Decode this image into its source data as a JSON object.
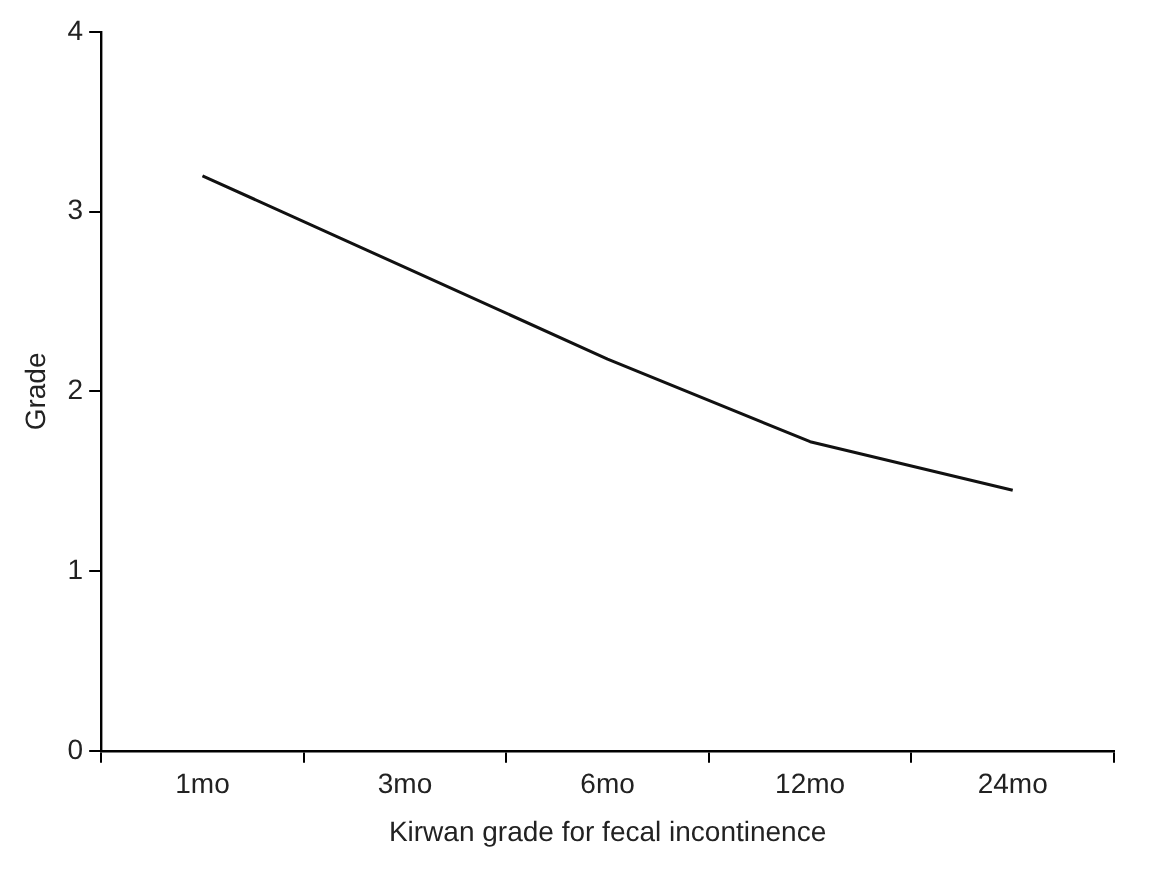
{
  "chart_data": {
    "type": "line",
    "xlabel": "Kirwan grade for fecal incontinence",
    "ylabel": "Grade",
    "categories": [
      "1mo",
      "3mo",
      "6mo",
      "12mo",
      "24mo"
    ],
    "series": [
      {
        "color": "#111111",
        "values": [
          3.2,
          2.69,
          2.18,
          1.72,
          1.45
        ]
      }
    ],
    "ylim": [
      0,
      4
    ],
    "yticks": [
      0,
      1,
      2,
      3,
      4
    ],
    "grid": false,
    "legend": false,
    "marker": "none",
    "line_style": "solid"
  }
}
